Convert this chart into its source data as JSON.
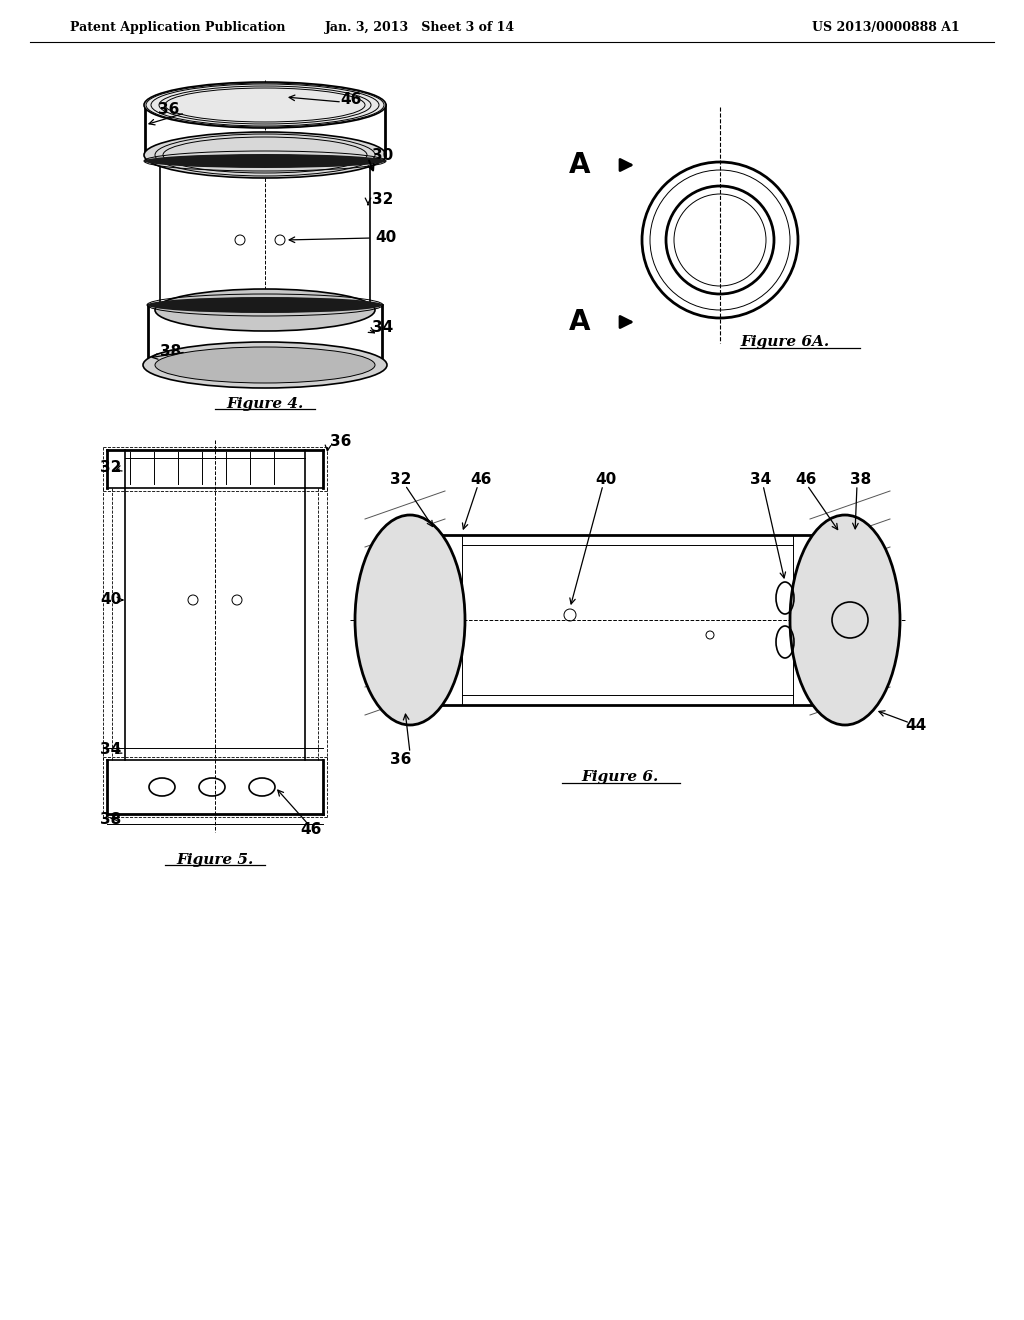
{
  "bg_color": "#ffffff",
  "header_left": "Patent Application Publication",
  "header_mid": "Jan. 3, 2013   Sheet 3 of 14",
  "header_right": "US 2013/0000888 A1",
  "fig4_title": "Figure 4.",
  "fig5_title": "Figure 5.",
  "fig6_title": "Figure 6.",
  "fig6a_title": "Figure 6A.",
  "text_color": "#000000",
  "line_color": "#000000",
  "label_fontsize": 10,
  "header_fontsize": 9,
  "fig_title_fontsize": 10,
  "lw_thin": 0.7,
  "lw_med": 1.2,
  "lw_thick": 2.0
}
